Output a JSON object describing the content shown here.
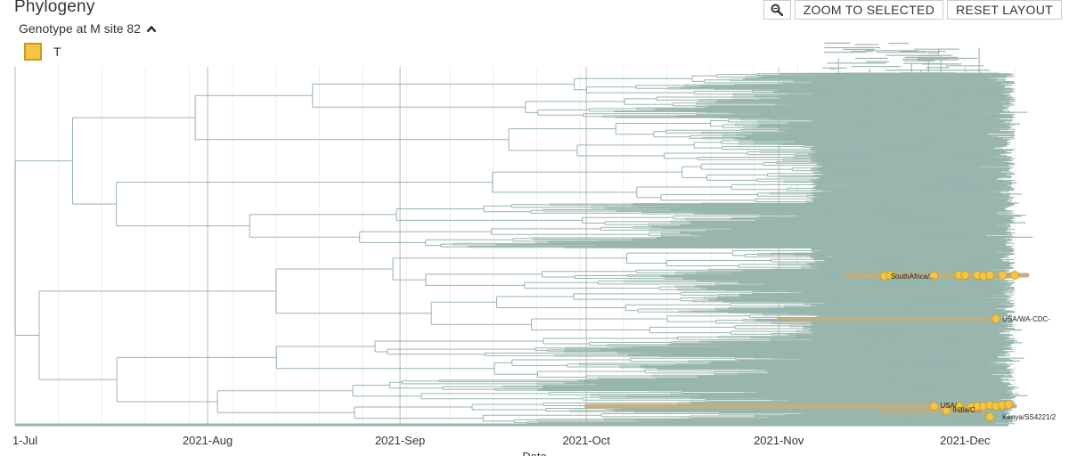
{
  "panel": {
    "title": "Phylogeny",
    "toolbar": {
      "zoom_icon": "magnifier-icon",
      "zoom_selected_label": "ZOOM TO SELECTED",
      "reset_layout_label": "RESET LAYOUT"
    },
    "legend": {
      "title": "Genotype at M site 82",
      "toggle_icon": "chevron-up-icon",
      "items": [
        {
          "label": "T",
          "color": "#f4c542"
        }
      ]
    }
  },
  "chart_data": {
    "type": "tree",
    "x_axis": {
      "label": "Date",
      "ticks": [
        "1-Jul",
        "2021-Aug",
        "2021-Sep",
        "2021-Oct",
        "2021-Nov",
        "2021-Dec"
      ],
      "range": [
        "2021-07-01",
        "2021-12-12"
      ]
    },
    "colors": {
      "branch": "#98b5ae",
      "highlight_branch": "#c5ae7a",
      "tip": "#f4c542",
      "tip_stroke": "#c99a1e",
      "grid": "#dddddd"
    },
    "tip_labels": [
      {
        "text": "SouthAfrica/...",
        "date": "2021-11-18"
      },
      {
        "text": "USA/WA-CDC-",
        "date": "2021-12-06"
      },
      {
        "text": "USA/...",
        "date": "2021-11-26"
      },
      {
        "text": "India/C...",
        "date": "2021-11-28"
      },
      {
        "text": "Kenya/SS4221/2",
        "date": "2021-12-06"
      }
    ]
  }
}
